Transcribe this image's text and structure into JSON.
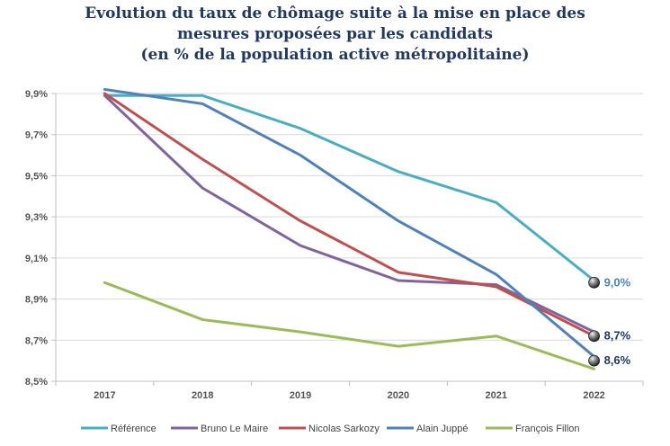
{
  "chart_data": {
    "type": "line",
    "title_lines": [
      "Evolution du taux de chômage suite à la mise en place des",
      "mesures proposées par les candidats",
      "(en % de la population active métropolitaine)"
    ],
    "categories": [
      "2017",
      "2018",
      "2019",
      "2020",
      "2021",
      "2022"
    ],
    "y_ticks": [
      "8,5%",
      "8,7%",
      "8,9%",
      "9,1%",
      "9,3%",
      "9,5%",
      "9,7%",
      "9,9%"
    ],
    "ylim": [
      8.5,
      9.9
    ],
    "grid": "horizontal",
    "legend_position": "bottom",
    "series": [
      {
        "name": "Référence",
        "color": "#4bacc6",
        "values": [
          9.89,
          9.89,
          9.73,
          9.52,
          9.37,
          8.99
        ]
      },
      {
        "name": "Bruno Le Maire",
        "color": "#8064a2",
        "values": [
          9.89,
          9.44,
          9.16,
          8.99,
          8.97,
          8.74
        ]
      },
      {
        "name": "Nicolas Sarkozy",
        "color": "#c0504d",
        "values": [
          9.9,
          9.58,
          9.28,
          9.03,
          8.96,
          8.72
        ]
      },
      {
        "name": "Alain Juppé",
        "color": "#4f81bd",
        "values": [
          9.92,
          9.85,
          9.6,
          9.28,
          9.02,
          8.62
        ]
      },
      {
        "name": "François Fillon",
        "color": "#9bbb59",
        "values": [
          8.98,
          8.8,
          8.74,
          8.67,
          8.72,
          8.56
        ]
      }
    ],
    "end_labels": [
      {
        "text": "9,0%",
        "value": 8.98,
        "color": "#4f81bd"
      },
      {
        "text": "8,7%",
        "value": 8.72,
        "color": "#1f3864"
      },
      {
        "text": "8,6%",
        "value": 8.6,
        "color": "#1f3864"
      }
    ]
  }
}
